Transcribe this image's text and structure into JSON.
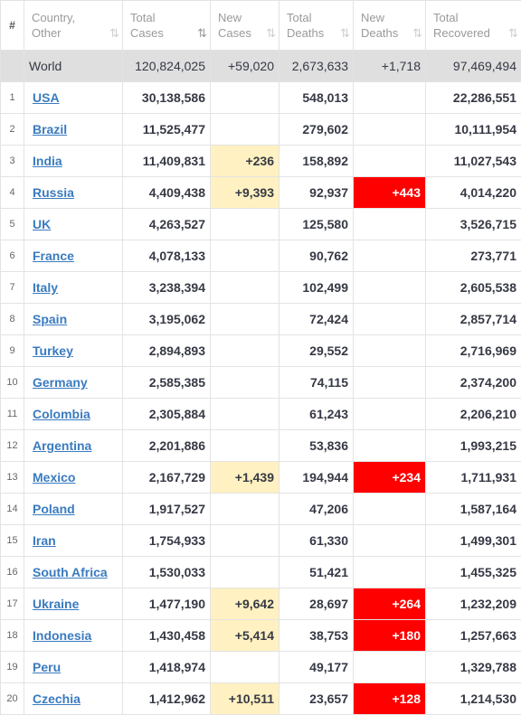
{
  "headers": [
    {
      "label": "#"
    },
    {
      "line1": "Country,",
      "line2": "Other",
      "sort": "⇅"
    },
    {
      "line1": "Total",
      "line2": "Cases",
      "sort": "⇅"
    },
    {
      "line1": "New",
      "line2": "Cases",
      "sort": "⇅"
    },
    {
      "line1": "Total",
      "line2": "Deaths",
      "sort": "⇅"
    },
    {
      "line1": "New",
      "line2": "Deaths",
      "sort": "⇅"
    },
    {
      "line1": "Total",
      "line2": "Recovered",
      "sort": "⇅"
    }
  ],
  "world": {
    "country": "World",
    "total_cases": "120,824,025",
    "new_cases": "+59,020",
    "total_deaths": "2,673,633",
    "new_deaths": "+1,718",
    "total_recovered": "97,469,494"
  },
  "rows": [
    {
      "idx": "1",
      "country": "USA",
      "total_cases": "30,138,586",
      "new_cases": "",
      "total_deaths": "548,013",
      "new_deaths": "",
      "total_recovered": "22,286,551"
    },
    {
      "idx": "2",
      "country": "Brazil",
      "total_cases": "11,525,477",
      "new_cases": "",
      "total_deaths": "279,602",
      "new_deaths": "",
      "total_recovered": "10,111,954"
    },
    {
      "idx": "3",
      "country": "India",
      "total_cases": "11,409,831",
      "new_cases": "+236",
      "total_deaths": "158,892",
      "new_deaths": "",
      "total_recovered": "11,027,543"
    },
    {
      "idx": "4",
      "country": "Russia",
      "total_cases": "4,409,438",
      "new_cases": "+9,393",
      "total_deaths": "92,937",
      "new_deaths": "+443",
      "total_recovered": "4,014,220"
    },
    {
      "idx": "5",
      "country": "UK",
      "total_cases": "4,263,527",
      "new_cases": "",
      "total_deaths": "125,580",
      "new_deaths": "",
      "total_recovered": "3,526,715"
    },
    {
      "idx": "6",
      "country": "France",
      "total_cases": "4,078,133",
      "new_cases": "",
      "total_deaths": "90,762",
      "new_deaths": "",
      "total_recovered": "273,771"
    },
    {
      "idx": "7",
      "country": "Italy",
      "total_cases": "3,238,394",
      "new_cases": "",
      "total_deaths": "102,499",
      "new_deaths": "",
      "total_recovered": "2,605,538"
    },
    {
      "idx": "8",
      "country": "Spain",
      "total_cases": "3,195,062",
      "new_cases": "",
      "total_deaths": "72,424",
      "new_deaths": "",
      "total_recovered": "2,857,714"
    },
    {
      "idx": "9",
      "country": "Turkey",
      "total_cases": "2,894,893",
      "new_cases": "",
      "total_deaths": "29,552",
      "new_deaths": "",
      "total_recovered": "2,716,969"
    },
    {
      "idx": "10",
      "country": "Germany",
      "total_cases": "2,585,385",
      "new_cases": "",
      "total_deaths": "74,115",
      "new_deaths": "",
      "total_recovered": "2,374,200"
    },
    {
      "idx": "11",
      "country": "Colombia",
      "total_cases": "2,305,884",
      "new_cases": "",
      "total_deaths": "61,243",
      "new_deaths": "",
      "total_recovered": "2,206,210"
    },
    {
      "idx": "12",
      "country": "Argentina",
      "total_cases": "2,201,886",
      "new_cases": "",
      "total_deaths": "53,836",
      "new_deaths": "",
      "total_recovered": "1,993,215"
    },
    {
      "idx": "13",
      "country": "Mexico",
      "total_cases": "2,167,729",
      "new_cases": "+1,439",
      "total_deaths": "194,944",
      "new_deaths": "+234",
      "total_recovered": "1,711,931"
    },
    {
      "idx": "14",
      "country": "Poland",
      "total_cases": "1,917,527",
      "new_cases": "",
      "total_deaths": "47,206",
      "new_deaths": "",
      "total_recovered": "1,587,164"
    },
    {
      "idx": "15",
      "country": "Iran",
      "total_cases": "1,754,933",
      "new_cases": "",
      "total_deaths": "61,330",
      "new_deaths": "",
      "total_recovered": "1,499,301"
    },
    {
      "idx": "16",
      "country": "South Africa",
      "total_cases": "1,530,033",
      "new_cases": "",
      "total_deaths": "51,421",
      "new_deaths": "",
      "total_recovered": "1,455,325"
    },
    {
      "idx": "17",
      "country": "Ukraine",
      "total_cases": "1,477,190",
      "new_cases": "+9,642",
      "total_deaths": "28,697",
      "new_deaths": "+264",
      "total_recovered": "1,232,209"
    },
    {
      "idx": "18",
      "country": "Indonesia",
      "total_cases": "1,430,458",
      "new_cases": "+5,414",
      "total_deaths": "38,753",
      "new_deaths": "+180",
      "total_recovered": "1,257,663"
    },
    {
      "idx": "19",
      "country": "Peru",
      "total_cases": "1,418,974",
      "new_cases": "",
      "total_deaths": "49,177",
      "new_deaths": "",
      "total_recovered": "1,329,788"
    },
    {
      "idx": "20",
      "country": "Czechia",
      "total_cases": "1,412,962",
      "new_cases": "+10,511",
      "total_deaths": "23,657",
      "new_deaths": "+128",
      "total_recovered": "1,214,530"
    }
  ],
  "colors": {
    "new_cases_bg": "#fff1c1",
    "new_deaths_bg": "#ff0000",
    "world_row_bg": "#dfdfdf",
    "link": "#3a7bbf"
  }
}
